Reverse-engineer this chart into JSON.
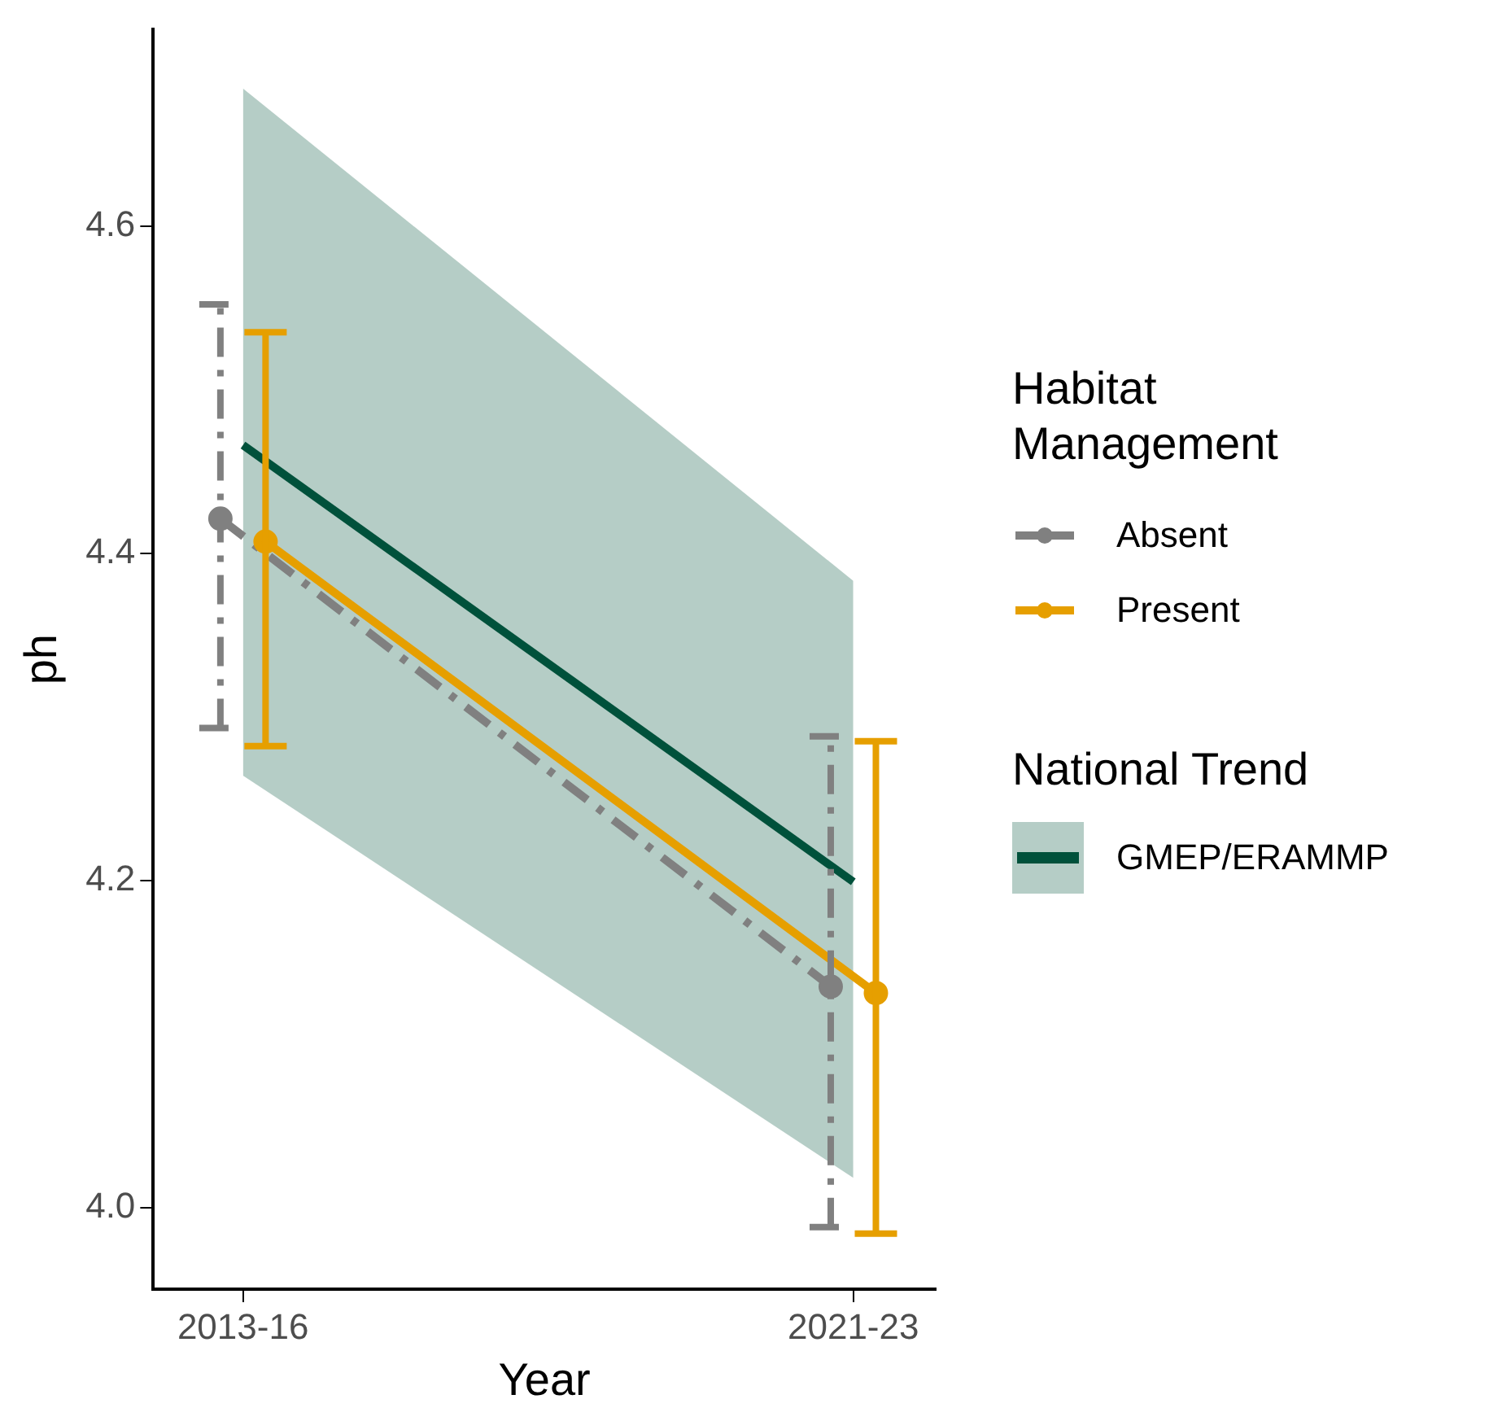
{
  "chart_data": {
    "type": "line",
    "xlabel": "Year",
    "ylabel": "ph",
    "legend_title": "Habitat Management",
    "annotations": [
      "National Trend"
    ],
    "legend": "right",
    "marker": "circle",
    "grid": false,
    "categories": [
      "2013-16",
      "2021-23"
    ],
    "ylim": [
      3.95,
      4.72
    ],
    "yticks": [
      {
        "value": 4.0,
        "label": "4.0"
      },
      {
        "value": 4.2,
        "label": "4.2"
      },
      {
        "value": 4.4,
        "label": "4.4"
      },
      {
        "value": 4.6,
        "label": "4.6"
      }
    ],
    "series": [
      {
        "name": "Absent",
        "color": "#808080",
        "line_style": "dashed",
        "values": [
          4.421,
          4.135
        ],
        "errors": [
          [
            4.293,
            4.552
          ],
          [
            3.988,
            4.288
          ]
        ]
      },
      {
        "name": "Present",
        "color": "#e69f00",
        "line_style": "solid",
        "values": [
          4.407,
          4.131
        ],
        "errors": [
          [
            4.282,
            4.535
          ],
          [
            3.984,
            4.285
          ]
        ]
      },
      {
        "name": "GMEP/ERAMMP",
        "color": "#00513b",
        "line_style": "solid",
        "marker": "none",
        "values": [
          4.466,
          4.199
        ],
        "lower": [
          4.264,
          4.018
        ],
        "upper": [
          4.684,
          4.383
        ]
      }
    ]
  }
}
